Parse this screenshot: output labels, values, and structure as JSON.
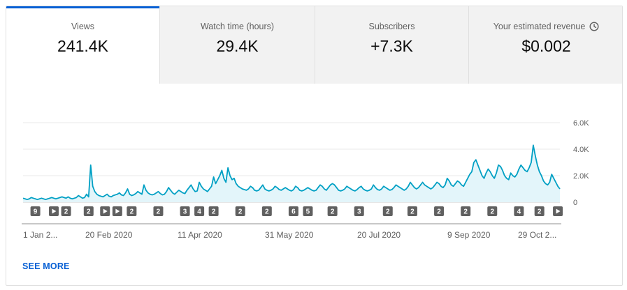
{
  "tabs": [
    {
      "label": "Views",
      "value": "241.4K",
      "active": true
    },
    {
      "label": "Watch time (hours)",
      "value": "29.4K",
      "active": false
    },
    {
      "label": "Subscribers",
      "value": "+7.3K",
      "active": false
    },
    {
      "label": "Your estimated revenue",
      "value": "$0.002",
      "active": false,
      "icon": "clock-icon"
    }
  ],
  "see_more_label": "SEE MORE",
  "colors": {
    "accent": "#065fd4",
    "line": "#00a0c4",
    "fill": "#e3f5fa",
    "badge": "#606060"
  },
  "chart_data": {
    "type": "area",
    "x_start": "1 Jan 2020",
    "x_end": "3 Nov 2020",
    "x_tick_labels": [
      "1 Jan 2...",
      "20 Feb 2020",
      "11 Apr 2020",
      "31 May 2020",
      "20 Jul 2020",
      "9 Sep 2020",
      "29 Oct 2..."
    ],
    "y_tick_labels": [
      "6.0K",
      "4.0K",
      "2.0K",
      "0"
    ],
    "ylim": [
      0,
      6000
    ],
    "grid": true,
    "series": [
      {
        "values": [
          300,
          250,
          200,
          250,
          350,
          300,
          250,
          200,
          250,
          300,
          250,
          200,
          250,
          300,
          350,
          300,
          250,
          300,
          350,
          400,
          350,
          300,
          400,
          300,
          250,
          300,
          350,
          500,
          400,
          300,
          350,
          600,
          400,
          2800,
          1200,
          800,
          600,
          500,
          450,
          400,
          500,
          600,
          450,
          400,
          500,
          550,
          600,
          700,
          550,
          500,
          700,
          1000,
          600,
          500,
          550,
          650,
          800,
          700,
          600,
          1300,
          900,
          700,
          600,
          550,
          600,
          700,
          800,
          650,
          550,
          600,
          800,
          1100,
          900,
          700,
          600,
          750,
          900,
          800,
          700,
          650,
          900,
          1100,
          1300,
          1000,
          800,
          850,
          1500,
          1200,
          1000,
          900,
          800,
          1000,
          1200,
          1900,
          1400,
          1700,
          2000,
          2400,
          1800,
          1500,
          2600,
          2000,
          1700,
          1800,
          1400,
          1200,
          1100,
          1000,
          950,
          900,
          1000,
          1200,
          1100,
          900,
          850,
          900,
          1100,
          1300,
          1000,
          900,
          850,
          900,
          1000,
          1200,
          1100,
          950,
          900,
          1000,
          1100,
          1000,
          900,
          850,
          950,
          1200,
          1100,
          900,
          850,
          900,
          1000,
          1100,
          1000,
          900,
          850,
          900,
          1100,
          1300,
          1200,
          1000,
          900,
          1100,
          1300,
          1400,
          1300,
          1100,
          900,
          850,
          900,
          1000,
          1200,
          1100,
          1000,
          900,
          850,
          950,
          1100,
          1200,
          1000,
          900,
          850,
          900,
          1000,
          1300,
          1100,
          950,
          900,
          1000,
          1200,
          1100,
          1000,
          900,
          950,
          1100,
          1300,
          1200,
          1100,
          1000,
          900,
          1000,
          1200,
          1500,
          1300,
          1100,
          1000,
          1100,
          1300,
          1500,
          1300,
          1200,
          1100,
          1000,
          1100,
          1300,
          1500,
          1400,
          1200,
          1100,
          1300,
          1800,
          1600,
          1300,
          1200,
          1400,
          1600,
          1500,
          1300,
          1200,
          1500,
          1800,
          2100,
          2300,
          3000,
          3200,
          2800,
          2400,
          2000,
          1800,
          2200,
          2500,
          2300,
          2000,
          1800,
          2200,
          2800,
          2700,
          2400,
          2000,
          1800,
          1700,
          2200,
          2000,
          1900,
          2100,
          2500,
          2800,
          2600,
          2400,
          2300,
          2600,
          3000,
          4300,
          3500,
          2800,
          2300,
          2000,
          1600,
          1400,
          1300,
          1500,
          2100,
          1800,
          1500,
          1200,
          1000
        ]
      }
    ],
    "annotations": [
      {
        "x_index": 6,
        "type": "count",
        "label": "9"
      },
      {
        "x_index": 15,
        "type": "play"
      },
      {
        "x_index": 21,
        "type": "count",
        "label": "2"
      },
      {
        "x_index": 32,
        "type": "count",
        "label": "2"
      },
      {
        "x_index": 40,
        "type": "play"
      },
      {
        "x_index": 46,
        "type": "play"
      },
      {
        "x_index": 53,
        "type": "count",
        "label": "2"
      },
      {
        "x_index": 66,
        "type": "count",
        "label": "2"
      },
      {
        "x_index": 79,
        "type": "count",
        "label": "3"
      },
      {
        "x_index": 86,
        "type": "count",
        "label": "4"
      },
      {
        "x_index": 93,
        "type": "count",
        "label": "2"
      },
      {
        "x_index": 106,
        "type": "count",
        "label": "2"
      },
      {
        "x_index": 119,
        "type": "count",
        "label": "2"
      },
      {
        "x_index": 132,
        "type": "count",
        "label": "6"
      },
      {
        "x_index": 139,
        "type": "count",
        "label": "5"
      },
      {
        "x_index": 151,
        "type": "count",
        "label": "2"
      },
      {
        "x_index": 164,
        "type": "count",
        "label": "3"
      },
      {
        "x_index": 178,
        "type": "count",
        "label": "2"
      },
      {
        "x_index": 190,
        "type": "count",
        "label": "2"
      },
      {
        "x_index": 203,
        "type": "count",
        "label": "2"
      },
      {
        "x_index": 216,
        "type": "count",
        "label": "2"
      },
      {
        "x_index": 229,
        "type": "count",
        "label": "2"
      },
      {
        "x_index": 242,
        "type": "count",
        "label": "4"
      },
      {
        "x_index": 252,
        "type": "count",
        "label": "2"
      },
      {
        "x_index": 261,
        "type": "play"
      }
    ]
  }
}
